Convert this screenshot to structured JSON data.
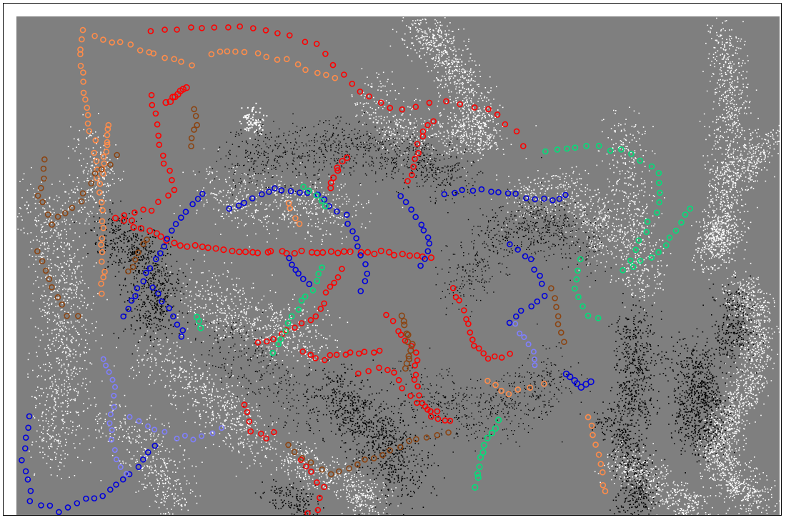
{
  "scene": {
    "background": "#7f7f7f",
    "frame_color": "#000000",
    "palette": {
      "white": "#ffffff",
      "black": "#000000",
      "red": "#ff0000",
      "blue": "#0000dd",
      "light_blue": "#7f7fff",
      "orange": "#ff8c4a",
      "brown": "#8b4513",
      "green": "#00e07a"
    },
    "mark_kinds": [
      "point-cloud",
      "ring-trail"
    ]
  }
}
